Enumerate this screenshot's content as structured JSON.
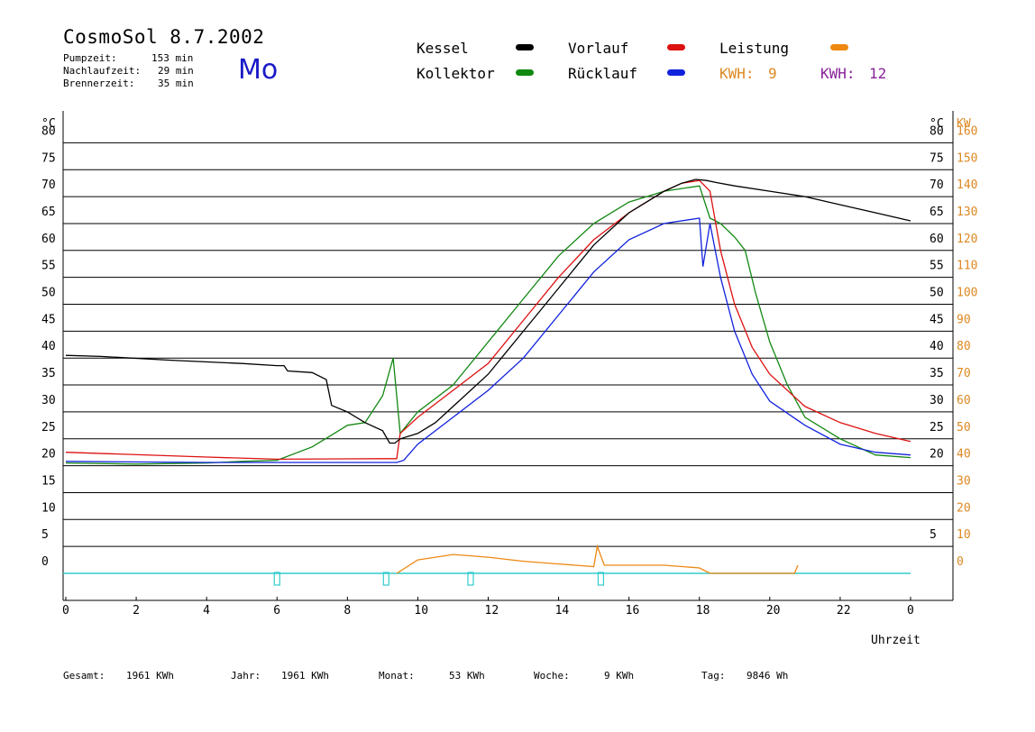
{
  "header": {
    "title": "CosmoSol 8.7.2002",
    "day": "Mo",
    "info": [
      {
        "label": "Pumpzeit:",
        "value": "153 min"
      },
      {
        "label": "Nachlaufzeit:",
        "value": "29 min"
      },
      {
        "label": "Brennerzeit:",
        "value": "35 min"
      }
    ]
  },
  "legend": {
    "items": [
      {
        "label": "Kessel",
        "color": "#000000"
      },
      {
        "label": "Kollektor",
        "color": "#118811"
      },
      {
        "label": "Vorlauf",
        "color": "#dd1111"
      },
      {
        "label": "Rücklauf",
        "color": "#1122dd"
      },
      {
        "label": "Leistung",
        "color": "#ee8811"
      }
    ],
    "kwh1": {
      "label": "KWH:",
      "value": "9",
      "color": "#dd8822"
    },
    "kwh2": {
      "label": "KWH:",
      "value": "12",
      "color": "#882299"
    }
  },
  "footer": {
    "gesamt": {
      "label": "Gesamt:",
      "value": "1961 KWh"
    },
    "jahr": {
      "label": "Jahr:",
      "value": "1961 KWh"
    },
    "monat": {
      "label": "Monat:",
      "value": "53 KWh"
    },
    "woche": {
      "label": "Woche:",
      "value": "9 KWh"
    },
    "tag": {
      "label": "Tag:",
      "value": "9846 Wh"
    }
  },
  "chart_data": {
    "type": "line",
    "xlabel": "Uhrzeit",
    "ylabel_left": "°C",
    "ylabel_right_temp": "°C",
    "ylabel_right_power": "KW",
    "xlim": [
      0,
      24
    ],
    "ylim": [
      -5,
      85
    ],
    "x_ticks": [
      "0",
      "2",
      "4",
      "6",
      "8",
      "10",
      "12",
      "14",
      "16",
      "18",
      "20",
      "22",
      "0"
    ],
    "y_ticks": [
      0,
      5,
      10,
      15,
      20,
      25,
      30,
      35,
      40,
      45,
      50,
      55,
      60,
      65,
      70,
      75,
      80
    ],
    "y_ticks_right": [
      5,
      20,
      25,
      30,
      35,
      40,
      45,
      50,
      55,
      60,
      65,
      70,
      75,
      80
    ],
    "power_ticks": [
      0,
      10,
      20,
      30,
      40,
      50,
      60,
      70,
      80,
      90,
      100,
      110,
      120,
      130,
      140,
      150,
      160
    ],
    "grid": true,
    "series": [
      {
        "name": "Kessel",
        "color": "#000000",
        "x": [
          0,
          1,
          3,
          5,
          6,
          6.2,
          6.3,
          7.0,
          7.4,
          7.55,
          8.0,
          8.5,
          9.0,
          9.2,
          9.35,
          9.5,
          10,
          10.5,
          11,
          11.5,
          12,
          12.5,
          13,
          13.5,
          14,
          14.5,
          15,
          15.5,
          16,
          16.5,
          17,
          17.5,
          17.9,
          18.2,
          18.5,
          19,
          20,
          21,
          22,
          23,
          24
        ],
        "y": [
          40.5,
          40.3,
          39.6,
          39,
          38.6,
          38.6,
          37.6,
          37.3,
          36,
          31.2,
          30,
          28,
          26.5,
          24.2,
          24.2,
          25,
          26,
          28,
          31,
          34,
          37,
          41,
          45,
          49,
          53,
          57,
          61,
          64,
          67,
          69,
          71,
          72.5,
          73.2,
          73,
          72.6,
          72,
          71,
          70,
          68.5,
          67,
          65.5
        ]
      },
      {
        "name": "Kollektor",
        "color": "#118811",
        "x": [
          0,
          2,
          4,
          5,
          6,
          7,
          7.5,
          8,
          8.5,
          9,
          9.3,
          9.5,
          10,
          11,
          12,
          13,
          14,
          15,
          16,
          17,
          18,
          18.3,
          18.6,
          19,
          19.3,
          19.6,
          20,
          20.5,
          21,
          22,
          23,
          24
        ],
        "y": [
          20.5,
          20.3,
          20.5,
          20.8,
          21,
          23.5,
          25.5,
          27.5,
          28,
          33,
          40,
          26,
          30,
          35,
          43,
          51,
          59,
          65,
          69,
          71,
          72,
          66,
          65,
          62.5,
          60,
          52,
          43,
          35,
          29,
          25,
          22,
          21.5
        ]
      },
      {
        "name": "Vorlauf",
        "color": "#dd1111",
        "x": [
          0,
          4,
          6,
          9,
          9.4,
          9.5,
          10,
          11,
          12,
          13,
          14,
          15,
          16,
          17,
          17.5,
          18,
          18.3,
          18.6,
          19,
          19.5,
          20,
          21,
          22,
          23,
          24
        ],
        "y": [
          22.5,
          21.6,
          21.2,
          21.3,
          21.3,
          26,
          29,
          34,
          39,
          47,
          55,
          62,
          67,
          71,
          72.5,
          73,
          71,
          60,
          50,
          42,
          37,
          31,
          28,
          26,
          24.5
        ]
      },
      {
        "name": "Rücklauf",
        "color": "#1122dd",
        "x": [
          0,
          4,
          6,
          9,
          9.4,
          9.6,
          10,
          11,
          12,
          13,
          14,
          15,
          16,
          17,
          18,
          18.1,
          18.3,
          18.6,
          19,
          19.5,
          20,
          21,
          22,
          23,
          24
        ],
        "y": [
          20.8,
          20.6,
          20.6,
          20.6,
          20.6,
          21,
          24,
          29,
          34,
          40,
          48,
          56,
          62,
          65,
          66,
          57,
          65,
          55,
          45,
          37,
          32,
          27.5,
          24,
          22.5,
          22
        ]
      },
      {
        "name": "Leistung",
        "color": "#ee8811",
        "unit": "KW",
        "x": [
          9.4,
          10,
          11,
          12,
          13,
          14,
          15,
          15.1,
          15.3,
          16,
          17,
          18,
          18.3,
          20.7,
          20.8
        ],
        "y": [
          0,
          5,
          7,
          6,
          4.5,
          3.5,
          2.5,
          10,
          3,
          3,
          3,
          2,
          0,
          0,
          3
        ]
      }
    ]
  }
}
